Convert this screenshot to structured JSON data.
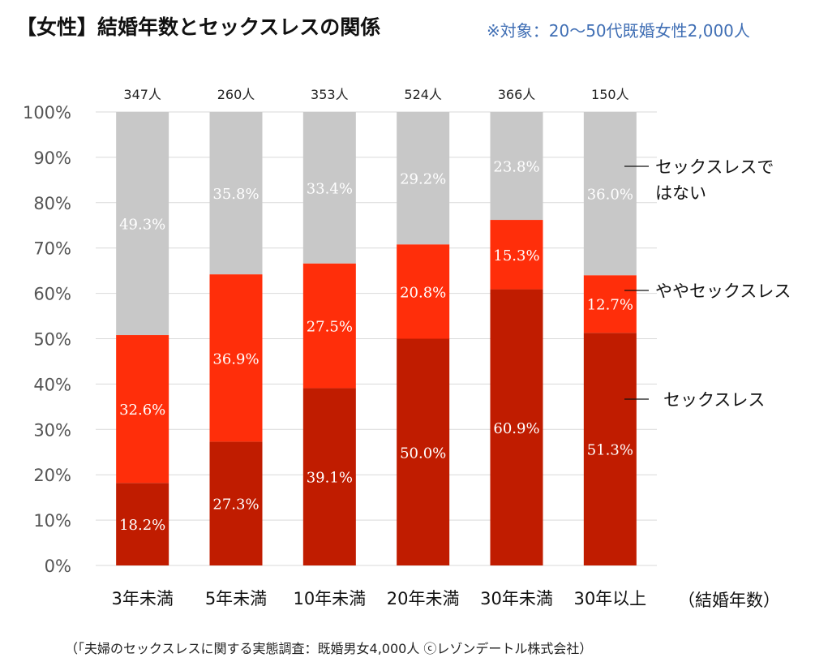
{
  "chart_data": {
    "type": "bar",
    "stacked": true,
    "title": "【女性】結婚年数とセックスレスの関係",
    "subtitle": "※対象：20～50代既婚女性2,000人",
    "source": "（「夫婦のセックスレスに関する実態調査：既婚男女4,000人 ⓒレゾンデートル株式会社）",
    "xlabel": "（結婚年数）",
    "ylim": [
      0,
      100
    ],
    "yticks": [
      "0%",
      "10%",
      "20%",
      "30%",
      "40%",
      "50%",
      "60%",
      "70%",
      "80%",
      "90%",
      "100%"
    ],
    "grid": true,
    "categories": [
      "3年未満",
      "5年未満",
      "10年未満",
      "20年未満",
      "30年未満",
      "30年以上"
    ],
    "respondents": [
      "347人",
      "260人",
      "353人",
      "524人",
      "366人",
      "150人"
    ],
    "series": [
      {
        "name": "セックスレス",
        "color": "#c01c00",
        "values": [
          18.2,
          27.3,
          39.1,
          50.0,
          60.9,
          51.3
        ],
        "labels": [
          "18.2%",
          "27.3%",
          "39.1%",
          "50.0%",
          "60.9%",
          "51.3%"
        ]
      },
      {
        "name": "ややセックスレス",
        "color": "#ff2e0a",
        "values": [
          32.6,
          36.9,
          27.5,
          20.8,
          15.3,
          12.7
        ],
        "labels": [
          "32.6%",
          "36.9%",
          "27.5%",
          "20.8%",
          "15.3%",
          "12.7%"
        ]
      },
      {
        "name": "セックスレスではない",
        "name_lines": [
          "セックスレスで",
          "はない"
        ],
        "color": "#c8c8c8",
        "values": [
          49.3,
          35.8,
          33.4,
          29.2,
          23.8,
          36.0
        ],
        "labels": [
          "49.3%",
          "35.8%",
          "33.4%",
          "29.2%",
          "23.8%",
          "36.0%"
        ]
      }
    ],
    "legend_position": "right"
  }
}
